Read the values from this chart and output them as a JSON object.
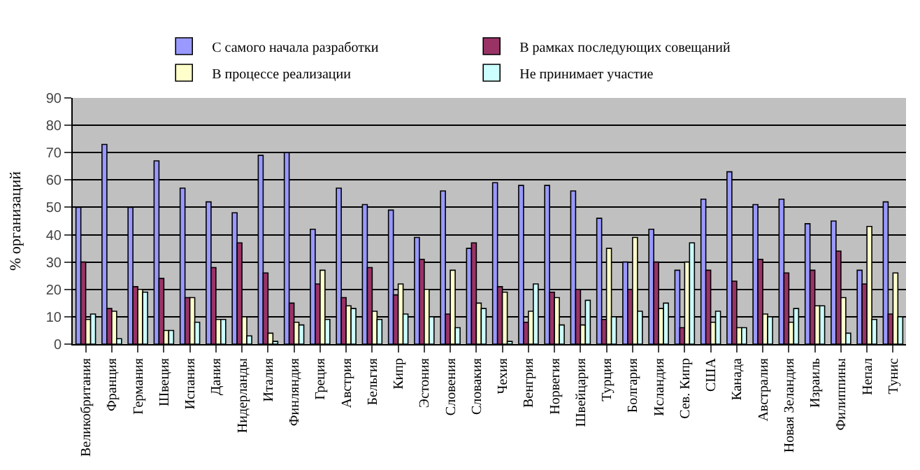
{
  "chart_data": {
    "type": "bar",
    "ylabel": "% организаций",
    "categories": [
      "Великобритания",
      "Франция",
      "Германия",
      "Швеция",
      "Испания",
      "Дания",
      "Нидерланды",
      "Италия",
      "Финляндия",
      "Греция",
      "Австрия",
      "Бельгия",
      "Кипр",
      "Эстония",
      "Словения",
      "Словакия",
      "Чехия",
      "Венгрия",
      "Норвегия",
      "Швейцария",
      "Турция",
      "Болгария",
      "Исландия",
      "Сев. Кипр",
      "США",
      "Канада",
      "Австралия",
      "Новая Зеландия",
      "Израиль",
      "Филиппины",
      "Непал",
      "Тунис"
    ],
    "series": [
      {
        "name": "С самого начала разработки",
        "color": "#9999ff",
        "values": [
          50,
          73,
          50,
          67,
          57,
          52,
          48,
          69,
          70,
          42,
          57,
          51,
          49,
          39,
          56,
          35,
          59,
          58,
          58,
          56,
          46,
          30,
          42,
          27,
          53,
          63,
          51,
          53,
          44,
          45,
          27,
          52
        ]
      },
      {
        "name": "В рамках последующих совещаний",
        "color": "#993366",
        "values": [
          30,
          13,
          21,
          24,
          17,
          28,
          37,
          26,
          15,
          22,
          17,
          28,
          18,
          31,
          11,
          37,
          21,
          8,
          19,
          20,
          9,
          20,
          30,
          6,
          27,
          23,
          31,
          26,
          27,
          34,
          22,
          11
        ]
      },
      {
        "name": "В процессе реализации",
        "color": "#ffffcc",
        "values": [
          9,
          12,
          20,
          5,
          17,
          9,
          10,
          4,
          8,
          27,
          14,
          12,
          22,
          20,
          27,
          15,
          19,
          12,
          17,
          7,
          35,
          39,
          13,
          30,
          8,
          6,
          11,
          8,
          14,
          17,
          43,
          26
        ]
      },
      {
        "name": "Не принимает участие",
        "color": "#ccffff",
        "values": [
          11,
          2,
          19,
          5,
          8,
          9,
          3,
          1,
          7,
          9,
          13,
          9,
          11,
          10,
          6,
          13,
          1,
          22,
          7,
          16,
          10,
          12,
          15,
          37,
          12,
          6,
          10,
          13,
          14,
          4,
          9,
          10
        ]
      }
    ],
    "ylim": [
      0,
      90
    ],
    "yticks": [
      0,
      10,
      20,
      30,
      40,
      50,
      60,
      70,
      80,
      90
    ],
    "grid": "y",
    "legend": "top left"
  }
}
